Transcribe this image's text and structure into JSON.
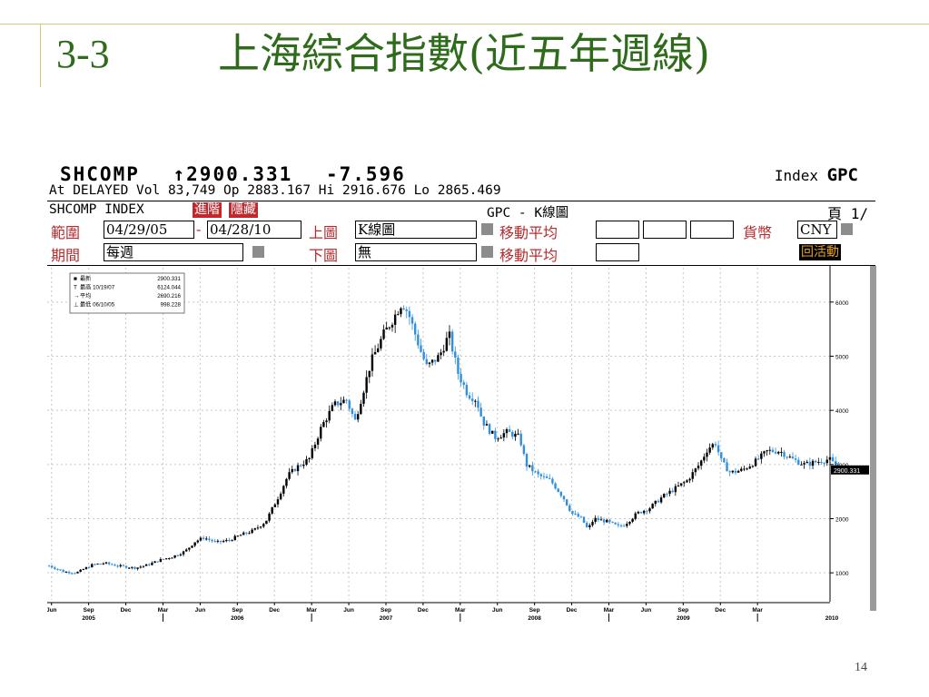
{
  "slide": {
    "number": "3-3",
    "title": "上海綜合指數(近五年週線)",
    "page": "14"
  },
  "terminal": {
    "ticker": "SHCOMP",
    "last": "↑2900.331",
    "change": "-7.596",
    "index_label": "Index",
    "index_code": "GPC",
    "line2": "At DELAYED Vol 83,749 Op 2883.167 Hi 2916.676 Lo 2865.469",
    "security": "SHCOMP INDEX",
    "btn_advanced": "進階",
    "btn_hide": "隱藏",
    "screen_name": "GPC - K線圖",
    "page_indicator": "頁 1/",
    "range_label": "範圍",
    "date_from": "04/29/05",
    "date_sep": "-",
    "date_to": "04/28/10",
    "upper_label": "上圖",
    "upper_value": "K線圖",
    "ma_label_1": "移動平均",
    "currency_label": "貨幣",
    "currency_value": "CNY",
    "period_label": "期間",
    "period_value": "每週",
    "lower_label": "下圖",
    "lower_value": "無",
    "ma_label_2": "移動平均",
    "active_btn": "回活動",
    "colors": {
      "up": "#000000",
      "down": "#2f8fe0",
      "red": "#b9292c",
      "title": "#2e6b1a"
    }
  },
  "chart_data": {
    "type": "candlestick",
    "frequency": "weekly",
    "legend": {
      "placement": "top-left",
      "rows": [
        {
          "label": "最新",
          "date": "",
          "value": "2900.331"
        },
        {
          "label": "最高",
          "date": "10/19/07",
          "value": "6124.044"
        },
        {
          "label": "平均",
          "date": "",
          "value": "2690.216"
        },
        {
          "label": "最低",
          "date": "06/10/05",
          "value": "998.228"
        }
      ]
    },
    "last_value_label": "2900.331",
    "y_axis": {
      "ticks": [
        "1000",
        "2000",
        "3000",
        "4000",
        "5000",
        "6000"
      ],
      "ylim": [
        500,
        6500
      ],
      "position": "right"
    },
    "x_axis": {
      "months": [
        "Jun",
        "Sep",
        "Dec",
        "Mar",
        "Jun",
        "Sep",
        "Dec",
        "Mar",
        "Jun",
        "Sep",
        "Dec",
        "Mar",
        "Jun",
        "Sep",
        "Dec",
        "Mar",
        "Jun",
        "Sep",
        "Dec",
        "Mar"
      ],
      "years": [
        "2005",
        "2006",
        "2007",
        "2008",
        "2009",
        "2010"
      ]
    },
    "x_range_months": [
      0,
      60
    ],
    "grid": true,
    "price_anchors": [
      [
        0,
        1130
      ],
      [
        1.2,
        1020
      ],
      [
        2.2,
        1000
      ],
      [
        3.5,
        1150
      ],
      [
        4.5,
        1180
      ],
      [
        5.5,
        1130
      ],
      [
        7,
        1090
      ],
      [
        8,
        1150
      ],
      [
        9,
        1240
      ],
      [
        10,
        1300
      ],
      [
        11,
        1400
      ],
      [
        11.8,
        1580
      ],
      [
        12.5,
        1650
      ],
      [
        13.5,
        1560
      ],
      [
        14.5,
        1600
      ],
      [
        15.5,
        1700
      ],
      [
        16.5,
        1780
      ],
      [
        17.5,
        1950
      ],
      [
        18.5,
        2400
      ],
      [
        19.3,
        2800
      ],
      [
        20,
        2950
      ],
      [
        21,
        3100
      ],
      [
        22,
        3700
      ],
      [
        23,
        4100
      ],
      [
        24,
        4200
      ],
      [
        24.7,
        3800
      ],
      [
        25.3,
        4300
      ],
      [
        26,
        4900
      ],
      [
        27,
        5400
      ],
      [
        27.8,
        5700
      ],
      [
        28.5,
        6000
      ],
      [
        29,
        5800
      ],
      [
        30,
        5100
      ],
      [
        30.5,
        4800
      ],
      [
        31.5,
        5000
      ],
      [
        32.3,
        5400
      ],
      [
        33,
        4700
      ],
      [
        33.8,
        4300
      ],
      [
        34.5,
        4200
      ],
      [
        35,
        3800
      ],
      [
        36,
        3500
      ],
      [
        37,
        3600
      ],
      [
        38,
        3500
      ],
      [
        38.5,
        3000
      ],
      [
        39.5,
        2800
      ],
      [
        40.5,
        2700
      ],
      [
        41.5,
        2400
      ],
      [
        42.2,
        2100
      ],
      [
        43,
        2000
      ],
      [
        43.5,
        1800
      ],
      [
        44,
        2000
      ],
      [
        45,
        1950
      ],
      [
        46,
        1850
      ],
      [
        46.5,
        1900
      ],
      [
        47.5,
        2100
      ],
      [
        48.5,
        2200
      ],
      [
        49.5,
        2400
      ],
      [
        50.5,
        2550
      ],
      [
        51.5,
        2700
      ],
      [
        52.5,
        3000
      ],
      [
        53.2,
        3300
      ],
      [
        53.8,
        3400
      ],
      [
        54.3,
        3050
      ],
      [
        55,
        2850
      ],
      [
        56,
        2900
      ],
      [
        57,
        3050
      ],
      [
        58,
        3250
      ],
      [
        59,
        3250
      ],
      [
        60,
        3100
      ],
      [
        61,
        3000
      ],
      [
        62,
        3050
      ],
      [
        63,
        3100
      ],
      [
        63.8,
        2900
      ]
    ],
    "shaded_right_bar": true
  }
}
